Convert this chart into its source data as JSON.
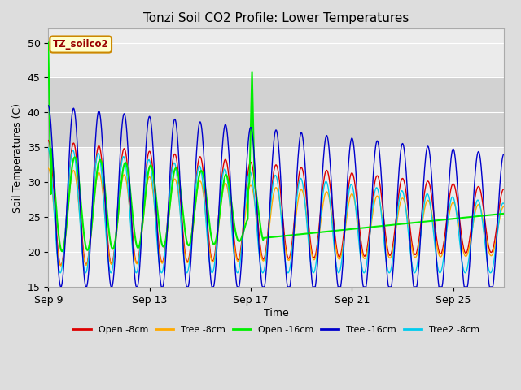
{
  "title": "Tonzi Soil CO2 Profile: Lower Temperatures",
  "xlabel": "Time",
  "ylabel": "Soil Temperatures (C)",
  "ylim": [
    15,
    52
  ],
  "yticks": [
    15,
    20,
    25,
    30,
    35,
    40,
    45,
    50
  ],
  "plot_bg_color": "#ebebeb",
  "legend_entries": [
    "Open -8cm",
    "Tree -8cm",
    "Open -16cm",
    "Tree -16cm",
    "Tree2 -8cm"
  ],
  "line_colors": [
    "#dd0000",
    "#ffaa00",
    "#00ee00",
    "#0000cc",
    "#00ccee"
  ],
  "label_box_color": "#ffffcc",
  "label_text_color": "#990000",
  "label_border_color": "#cc8800",
  "label_text": "TZ_soilco2",
  "xtick_labels": [
    "Sep 9",
    "Sep 13",
    "Sep 17",
    "Sep 21",
    "Sep 25"
  ],
  "xtick_positions": [
    0,
    4,
    8,
    12,
    16
  ],
  "shaded_ymin": 35,
  "shaded_ymax": 45
}
